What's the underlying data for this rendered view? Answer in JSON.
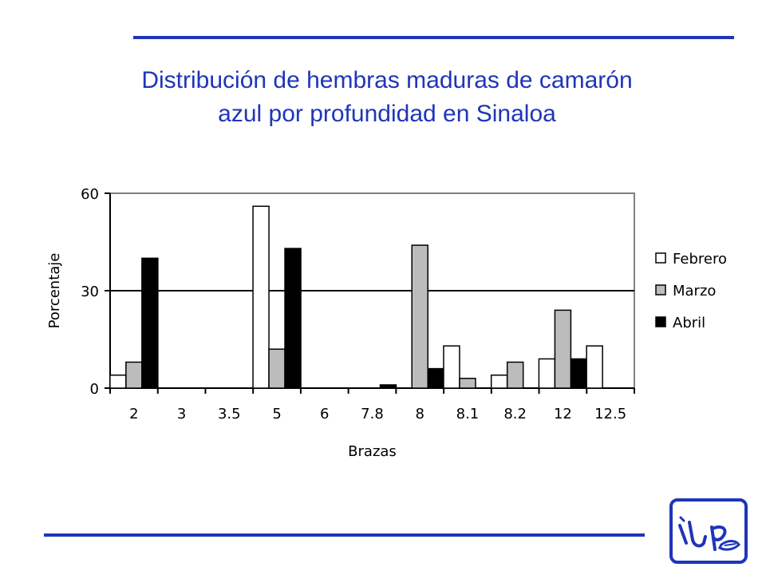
{
  "title_lines": [
    "Distribución de hembras maduras de camarón",
    "azul por profundidad en Sinaloa"
  ],
  "colors": {
    "accent": "#1f35b8",
    "febrero": "#ffffff",
    "marzo": "#bcbcbc",
    "abril": "#000000"
  },
  "logo_icon": "inp-logo-icon",
  "chart_data": {
    "type": "bar",
    "xlabel": "Brazas",
    "ylabel": "Porcentaje",
    "categories": [
      "2",
      "3",
      "3.5",
      "5",
      "6",
      "7.8",
      "8",
      "8.1",
      "8.2",
      "12",
      "12.5"
    ],
    "series": [
      {
        "name": "Febrero",
        "values": [
          4,
          0,
          0,
          56,
          0,
          0,
          0,
          13,
          4,
          9,
          13
        ]
      },
      {
        "name": "Marzo",
        "values": [
          8,
          0,
          0,
          12,
          0,
          0,
          44,
          3,
          8,
          24,
          0
        ]
      },
      {
        "name": "Abril",
        "values": [
          40,
          0,
          0,
          43,
          0,
          1,
          6,
          0,
          0,
          9,
          0
        ]
      }
    ],
    "ylim": [
      0,
      60
    ],
    "yticks": [
      0,
      30,
      60
    ],
    "grid": "horizontal at 30",
    "legend_position": "right"
  }
}
